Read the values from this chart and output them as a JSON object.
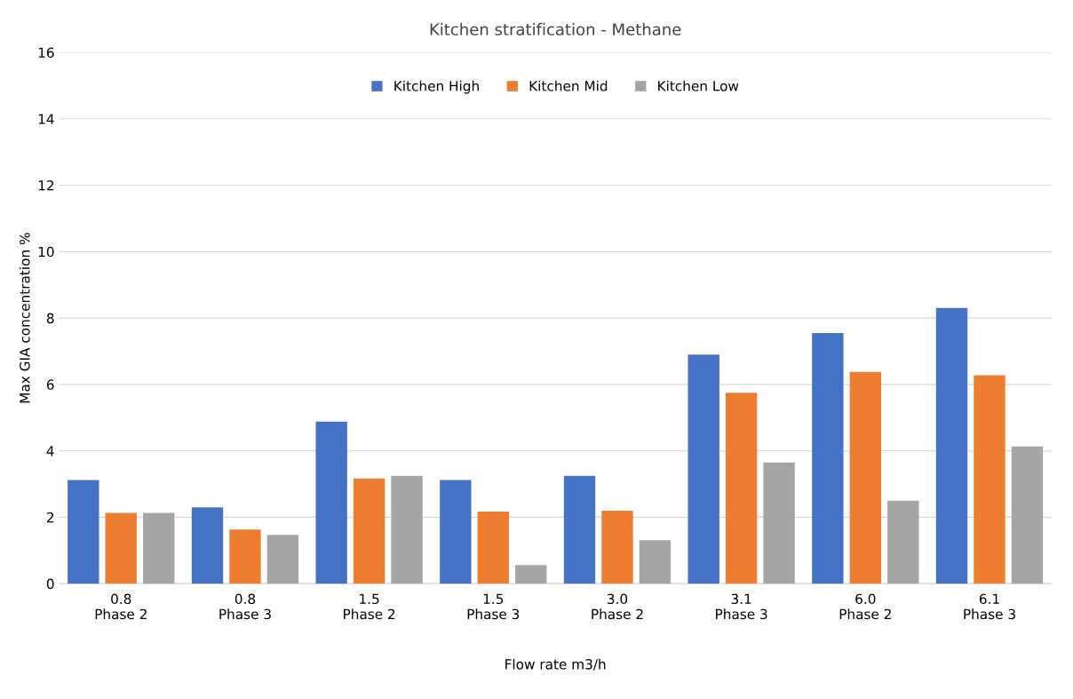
{
  "chart_data": {
    "type": "bar",
    "title": "Kitchen stratification - Methane",
    "xlabel": "Flow rate m3/h",
    "ylabel": "Max GIA concentration %",
    "categories": [
      "0.8\nPhase 2",
      "0.8\nPhase 3",
      "1.5\nPhase 2",
      "1.5\nPhase 3",
      "3.0\nPhase 2",
      "3.1\nPhase 3",
      "6.0\nPhase 2",
      "6.1\nPhase 3"
    ],
    "series": [
      {
        "name": "Kitchen High",
        "color": "#4472c4",
        "values": [
          3.12,
          2.3,
          4.88,
          3.12,
          3.25,
          6.9,
          7.55,
          8.3
        ]
      },
      {
        "name": "Kitchen Mid",
        "color": "#ed7d31",
        "values": [
          2.13,
          1.63,
          3.17,
          2.17,
          2.2,
          5.75,
          6.38,
          6.28
        ]
      },
      {
        "name": "Kitchen Low",
        "color": "#a5a5a5",
        "values": [
          2.13,
          1.47,
          3.25,
          0.56,
          1.31,
          3.65,
          2.5,
          4.13
        ]
      }
    ],
    "ylim": [
      0,
      16
    ],
    "yticks": [
      0,
      2,
      4,
      6,
      8,
      10,
      12,
      14,
      16
    ],
    "grid": "y",
    "legend": "top"
  }
}
